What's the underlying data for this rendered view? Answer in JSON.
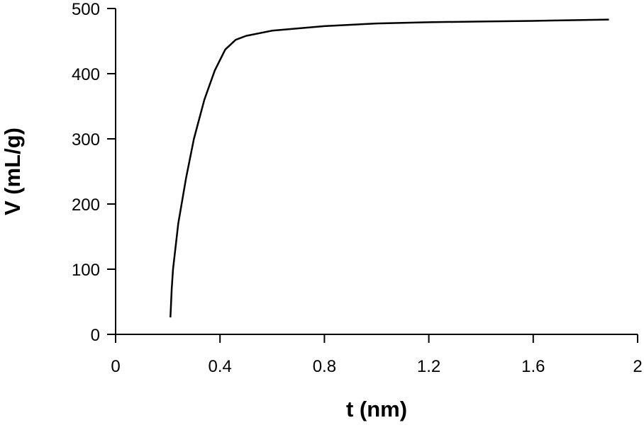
{
  "chart_data": {
    "type": "line",
    "x_label": "t (nm)",
    "y_label": "V (mL/g)",
    "series": [
      {
        "color": "#000000",
        "x": [
          0.21,
          0.215,
          0.22,
          0.24,
          0.27,
          0.3,
          0.34,
          0.38,
          0.42,
          0.46,
          0.5,
          0.6,
          0.8,
          1.0,
          1.2,
          1.4,
          1.6,
          1.89
        ],
        "values": [
          26,
          70,
          100,
          170,
          240,
          300,
          360,
          405,
          437,
          452,
          458,
          466,
          473,
          477,
          479,
          480,
          481,
          483
        ]
      }
    ],
    "xlim": [
      0,
      2
    ],
    "xticks": [
      0,
      0.4,
      0.8,
      1.2,
      1.6,
      2
    ],
    "ylim": [
      0,
      500
    ],
    "yticks": [
      0,
      100,
      200,
      300,
      400,
      500
    ],
    "grid": false
  }
}
